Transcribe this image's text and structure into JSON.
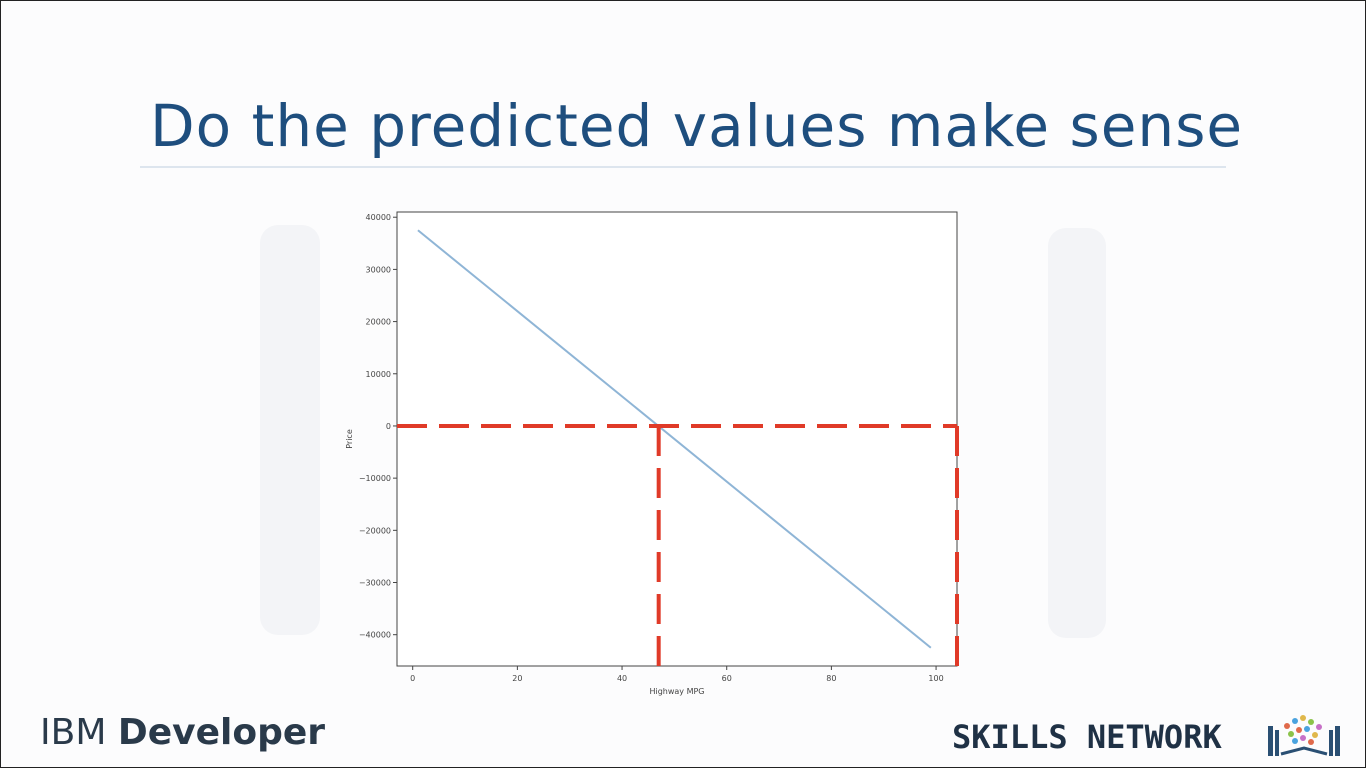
{
  "slide": {
    "title": "Do the predicted values make sense",
    "brand_left_prefix": "IBM",
    "brand_left_bold": "Developer",
    "brand_right": "SKILLS NETWORK"
  },
  "colors": {
    "title": "#1e4e7e",
    "line": "#8fb5d6",
    "dash": "#e03a28"
  },
  "icons": {
    "skills_network_logo": "books-with-dots-icon"
  },
  "chart_data": {
    "type": "line",
    "xlabel": "Highway MPG",
    "ylabel": "Price",
    "xlim": [
      -3,
      104
    ],
    "ylim": [
      -46000,
      41000
    ],
    "xticks": [
      0,
      20,
      40,
      60,
      80,
      100
    ],
    "yticks": [
      40000,
      30000,
      20000,
      10000,
      0,
      -10000,
      -20000,
      -30000,
      -40000
    ],
    "grid": false,
    "series": [
      {
        "x": [
          1,
          99
        ],
        "y": [
          37500,
          -42500
        ]
      }
    ],
    "annotations": [
      {
        "type": "dashed-line",
        "from": [
          -3,
          0
        ],
        "to": [
          104,
          0
        ]
      },
      {
        "type": "dashed-line",
        "from": [
          47,
          0
        ],
        "to": [
          47,
          -46000
        ]
      },
      {
        "type": "dashed-line",
        "from": [
          104,
          0
        ],
        "to": [
          104,
          -46000
        ]
      }
    ]
  }
}
